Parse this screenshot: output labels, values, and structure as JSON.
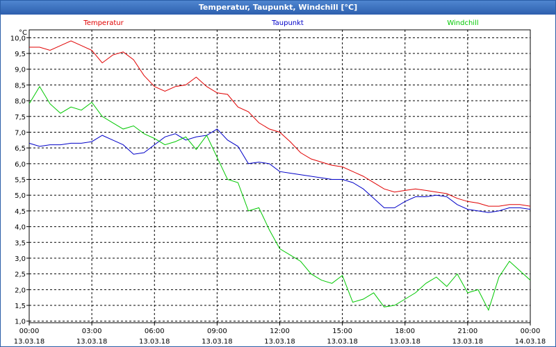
{
  "window": {
    "title": "Temperatur, Taupunkt, Windchill [°C]"
  },
  "chart_data": {
    "type": "line",
    "title": "Temperatur, Taupunkt, Windchill [°C]",
    "ylabel": "°C",
    "ylim": [
      0.95,
      10.25
    ],
    "xlim_hours": [
      0,
      24
    ],
    "grid": true,
    "y_ticks": [
      "1,0",
      "1,5",
      "2,0",
      "2,5",
      "3,0",
      "3,5",
      "4,0",
      "4,5",
      "5,0",
      "5,5",
      "6,0",
      "6,5",
      "7,0",
      "7,5",
      "8,0",
      "8,5",
      "9,0",
      "9,5",
      "10,0"
    ],
    "x_ticks": [
      {
        "time": "00:00",
        "date": "13.03.18"
      },
      {
        "time": "03:00",
        "date": "13.03.18"
      },
      {
        "time": "06:00",
        "date": "13.03.18"
      },
      {
        "time": "09:00",
        "date": "13.03.18"
      },
      {
        "time": "12:00",
        "date": "13.03.18"
      },
      {
        "time": "15:00",
        "date": "13.03.18"
      },
      {
        "time": "18:00",
        "date": "13.03.18"
      },
      {
        "time": "21:00",
        "date": "13.03.18"
      },
      {
        "time": "00:00",
        "date": "14.03.18"
      }
    ],
    "series": [
      {
        "name": "Temperatur",
        "color": "#e00000",
        "x": [
          0,
          0.5,
          1,
          1.5,
          2,
          2.5,
          3,
          3.5,
          4,
          4.5,
          5,
          5.5,
          6,
          6.5,
          7,
          7.5,
          8,
          8.5,
          9,
          9.5,
          10,
          10.5,
          11,
          11.5,
          12,
          12.5,
          13,
          13.5,
          14,
          14.5,
          15,
          15.5,
          16,
          16.5,
          17,
          17.5,
          18,
          18.5,
          19,
          19.5,
          20,
          20.5,
          21,
          21.5,
          22,
          22.5,
          23,
          23.5,
          24
        ],
        "values": [
          9.7,
          9.7,
          9.6,
          9.75,
          9.9,
          9.75,
          9.6,
          9.2,
          9.45,
          9.55,
          9.3,
          8.8,
          8.45,
          8.3,
          8.45,
          8.5,
          8.75,
          8.45,
          8.25,
          8.2,
          7.8,
          7.65,
          7.3,
          7.1,
          7.0,
          6.7,
          6.35,
          6.15,
          6.05,
          5.95,
          5.9,
          5.75,
          5.6,
          5.4,
          5.2,
          5.1,
          5.15,
          5.2,
          5.15,
          5.1,
          5.05,
          4.9,
          4.8,
          4.75,
          4.65,
          4.65,
          4.7,
          4.7,
          4.65
        ]
      },
      {
        "name": "Taupunkt",
        "color": "#0000c8",
        "x": [
          0,
          0.5,
          1,
          1.5,
          2,
          2.5,
          3,
          3.5,
          4,
          4.5,
          5,
          5.5,
          6,
          6.5,
          7,
          7.5,
          8,
          8.5,
          9,
          9.5,
          10,
          10.5,
          11,
          11.5,
          12,
          12.5,
          13,
          13.5,
          14,
          14.5,
          15,
          15.5,
          16,
          16.5,
          17,
          17.5,
          18,
          18.5,
          19,
          19.5,
          20,
          20.5,
          21,
          21.5,
          22,
          22.5,
          23,
          23.5,
          24
        ],
        "values": [
          6.65,
          6.55,
          6.6,
          6.6,
          6.65,
          6.65,
          6.7,
          6.9,
          6.75,
          6.6,
          6.3,
          6.35,
          6.6,
          6.85,
          6.95,
          6.75,
          6.85,
          6.9,
          7.1,
          6.75,
          6.55,
          6.0,
          6.05,
          6.0,
          5.75,
          5.7,
          5.65,
          5.6,
          5.55,
          5.5,
          5.5,
          5.4,
          5.2,
          4.9,
          4.6,
          4.6,
          4.8,
          4.95,
          4.95,
          5.0,
          4.95,
          4.7,
          4.55,
          4.5,
          4.45,
          4.5,
          4.6,
          4.6,
          4.55
        ]
      },
      {
        "name": "Windchill",
        "color": "#00c800",
        "x": [
          0,
          0.5,
          1,
          1.5,
          2,
          2.5,
          3,
          3.5,
          4,
          4.5,
          5,
          5.5,
          6,
          6.5,
          7,
          7.5,
          8,
          8.5,
          9,
          9.5,
          10,
          10.5,
          11,
          11.5,
          12,
          12.5,
          13,
          13.5,
          14,
          14.5,
          15,
          15.5,
          16,
          16.5,
          17,
          17.5,
          18,
          18.5,
          19,
          19.5,
          20,
          20.5,
          21,
          21.5,
          22,
          22.5,
          23,
          23.5,
          24
        ],
        "values": [
          7.9,
          8.45,
          7.9,
          7.6,
          7.8,
          7.7,
          7.95,
          7.5,
          7.3,
          7.1,
          7.2,
          6.95,
          6.8,
          6.6,
          6.7,
          6.85,
          6.45,
          6.9,
          6.2,
          5.5,
          5.4,
          4.5,
          4.6,
          3.9,
          3.3,
          3.1,
          2.9,
          2.5,
          2.3,
          2.2,
          2.45,
          1.6,
          1.7,
          1.9,
          1.45,
          1.5,
          1.7,
          1.9,
          2.2,
          2.4,
          2.1,
          2.5,
          1.9,
          2.0,
          1.35,
          2.4,
          2.9,
          2.6,
          2.3
        ]
      }
    ]
  }
}
